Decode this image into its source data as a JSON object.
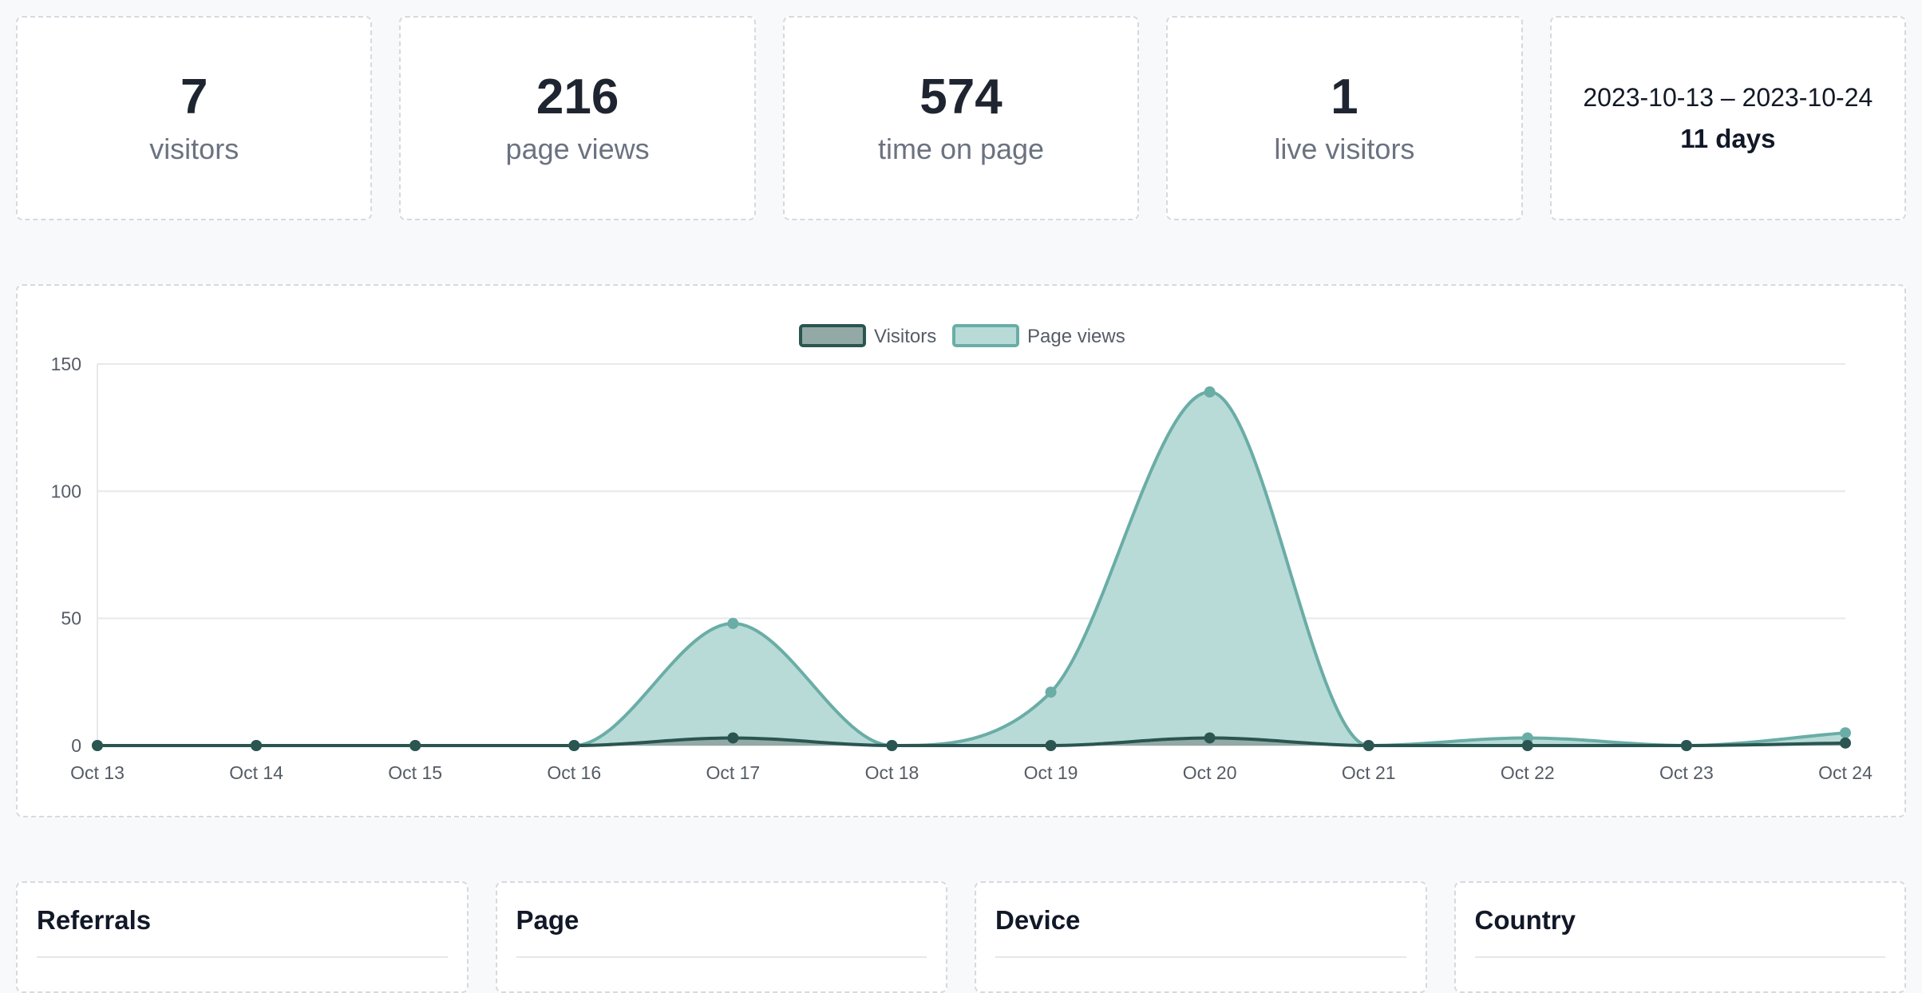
{
  "stats": [
    {
      "value": "7",
      "label": "visitors"
    },
    {
      "value": "216",
      "label": "page views"
    },
    {
      "value": "574",
      "label": "time on page"
    },
    {
      "value": "1",
      "label": "live visitors"
    }
  ],
  "range": {
    "dates": "2023-10-13 – 2023-10-24",
    "days": "11 days"
  },
  "colors": {
    "visitors_line": "#2a5551",
    "visitors_fill": "#93a9a6",
    "pageviews_line": "#6aada6",
    "pageviews_fill": "#b8dbd8",
    "grid": "#e6e8eb",
    "card_border": "#d6d9de"
  },
  "chart_data": {
    "type": "area",
    "categories": [
      "Oct 13",
      "Oct 14",
      "Oct 15",
      "Oct 16",
      "Oct 17",
      "Oct 18",
      "Oct 19",
      "Oct 20",
      "Oct 21",
      "Oct 22",
      "Oct 23",
      "Oct 24"
    ],
    "series": [
      {
        "name": "Visitors",
        "values": [
          0,
          0,
          0,
          0,
          3,
          0,
          0,
          3,
          0,
          0,
          0,
          1
        ]
      },
      {
        "name": "Page views",
        "values": [
          0,
          0,
          0,
          0,
          48,
          0,
          21,
          139,
          0,
          3,
          0,
          5
        ]
      }
    ],
    "yticks": [
      "0",
      "50",
      "100",
      "150"
    ],
    "ylim": [
      0,
      150
    ],
    "grid": true,
    "legend": "top-center",
    "smooth": true
  },
  "panels": [
    {
      "title": "Referrals"
    },
    {
      "title": "Page"
    },
    {
      "title": "Device"
    },
    {
      "title": "Country"
    }
  ]
}
